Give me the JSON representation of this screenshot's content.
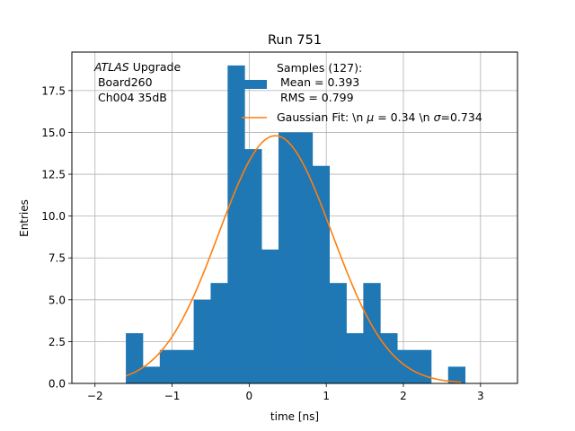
{
  "chart_data": {
    "type": "bar",
    "title": "Run 751",
    "xlabel": "time [ns]",
    "ylabel": "Entries",
    "xlim": [
      -2.3,
      3.48
    ],
    "ylim": [
      0,
      19.8
    ],
    "xticks": [
      -2,
      -1,
      0,
      1,
      2,
      3
    ],
    "xtick_labels": [
      "−2",
      "−1",
      "0",
      "1",
      "2",
      "3"
    ],
    "yticks": [
      0,
      2.5,
      5,
      7.5,
      10,
      12.5,
      15,
      17.5
    ],
    "ytick_labels": [
      "0.0",
      "2.5",
      "5.0",
      "7.5",
      "10.0",
      "12.5",
      "15.0",
      "17.5"
    ],
    "grid": true,
    "bin_edges": [
      -1.6,
      -1.38,
      -1.16,
      -0.94,
      -0.72,
      -0.5,
      -0.28,
      -0.06,
      0.16,
      0.38,
      0.6,
      0.82,
      1.04,
      1.26,
      1.48,
      1.7,
      1.92,
      2.14,
      2.36,
      2.58,
      2.8
    ],
    "counts": [
      3,
      1,
      2,
      2,
      5,
      6,
      19,
      14,
      8,
      15,
      15,
      13,
      6,
      3,
      6,
      3,
      2,
      2,
      0,
      1
    ],
    "histogram_color": "#1f77b4",
    "fit": {
      "amplitude": 14.8,
      "mu": 0.34,
      "sigma": 0.734,
      "x_range": [
        -1.6,
        2.75
      ],
      "color": "#ff7f0e"
    },
    "annotation": {
      "line1_italic": "ATLAS",
      "line1_rest": " Upgrade",
      "line2": " Board260",
      "line3": " Ch004 35dB"
    },
    "legend": {
      "position": "top-right",
      "histogram_label_lines": [
        "Samples (127):",
        " Mean = 0.393",
        " RMS = 0.799"
      ],
      "fit_label_prefix": "Gaussian Fit: \\n ",
      "fit_mu_symbol": "μ",
      "fit_mu_text": " = 0.34 \\n ",
      "fit_sigma_symbol": "σ",
      "fit_sigma_text": "=0.734"
    }
  }
}
